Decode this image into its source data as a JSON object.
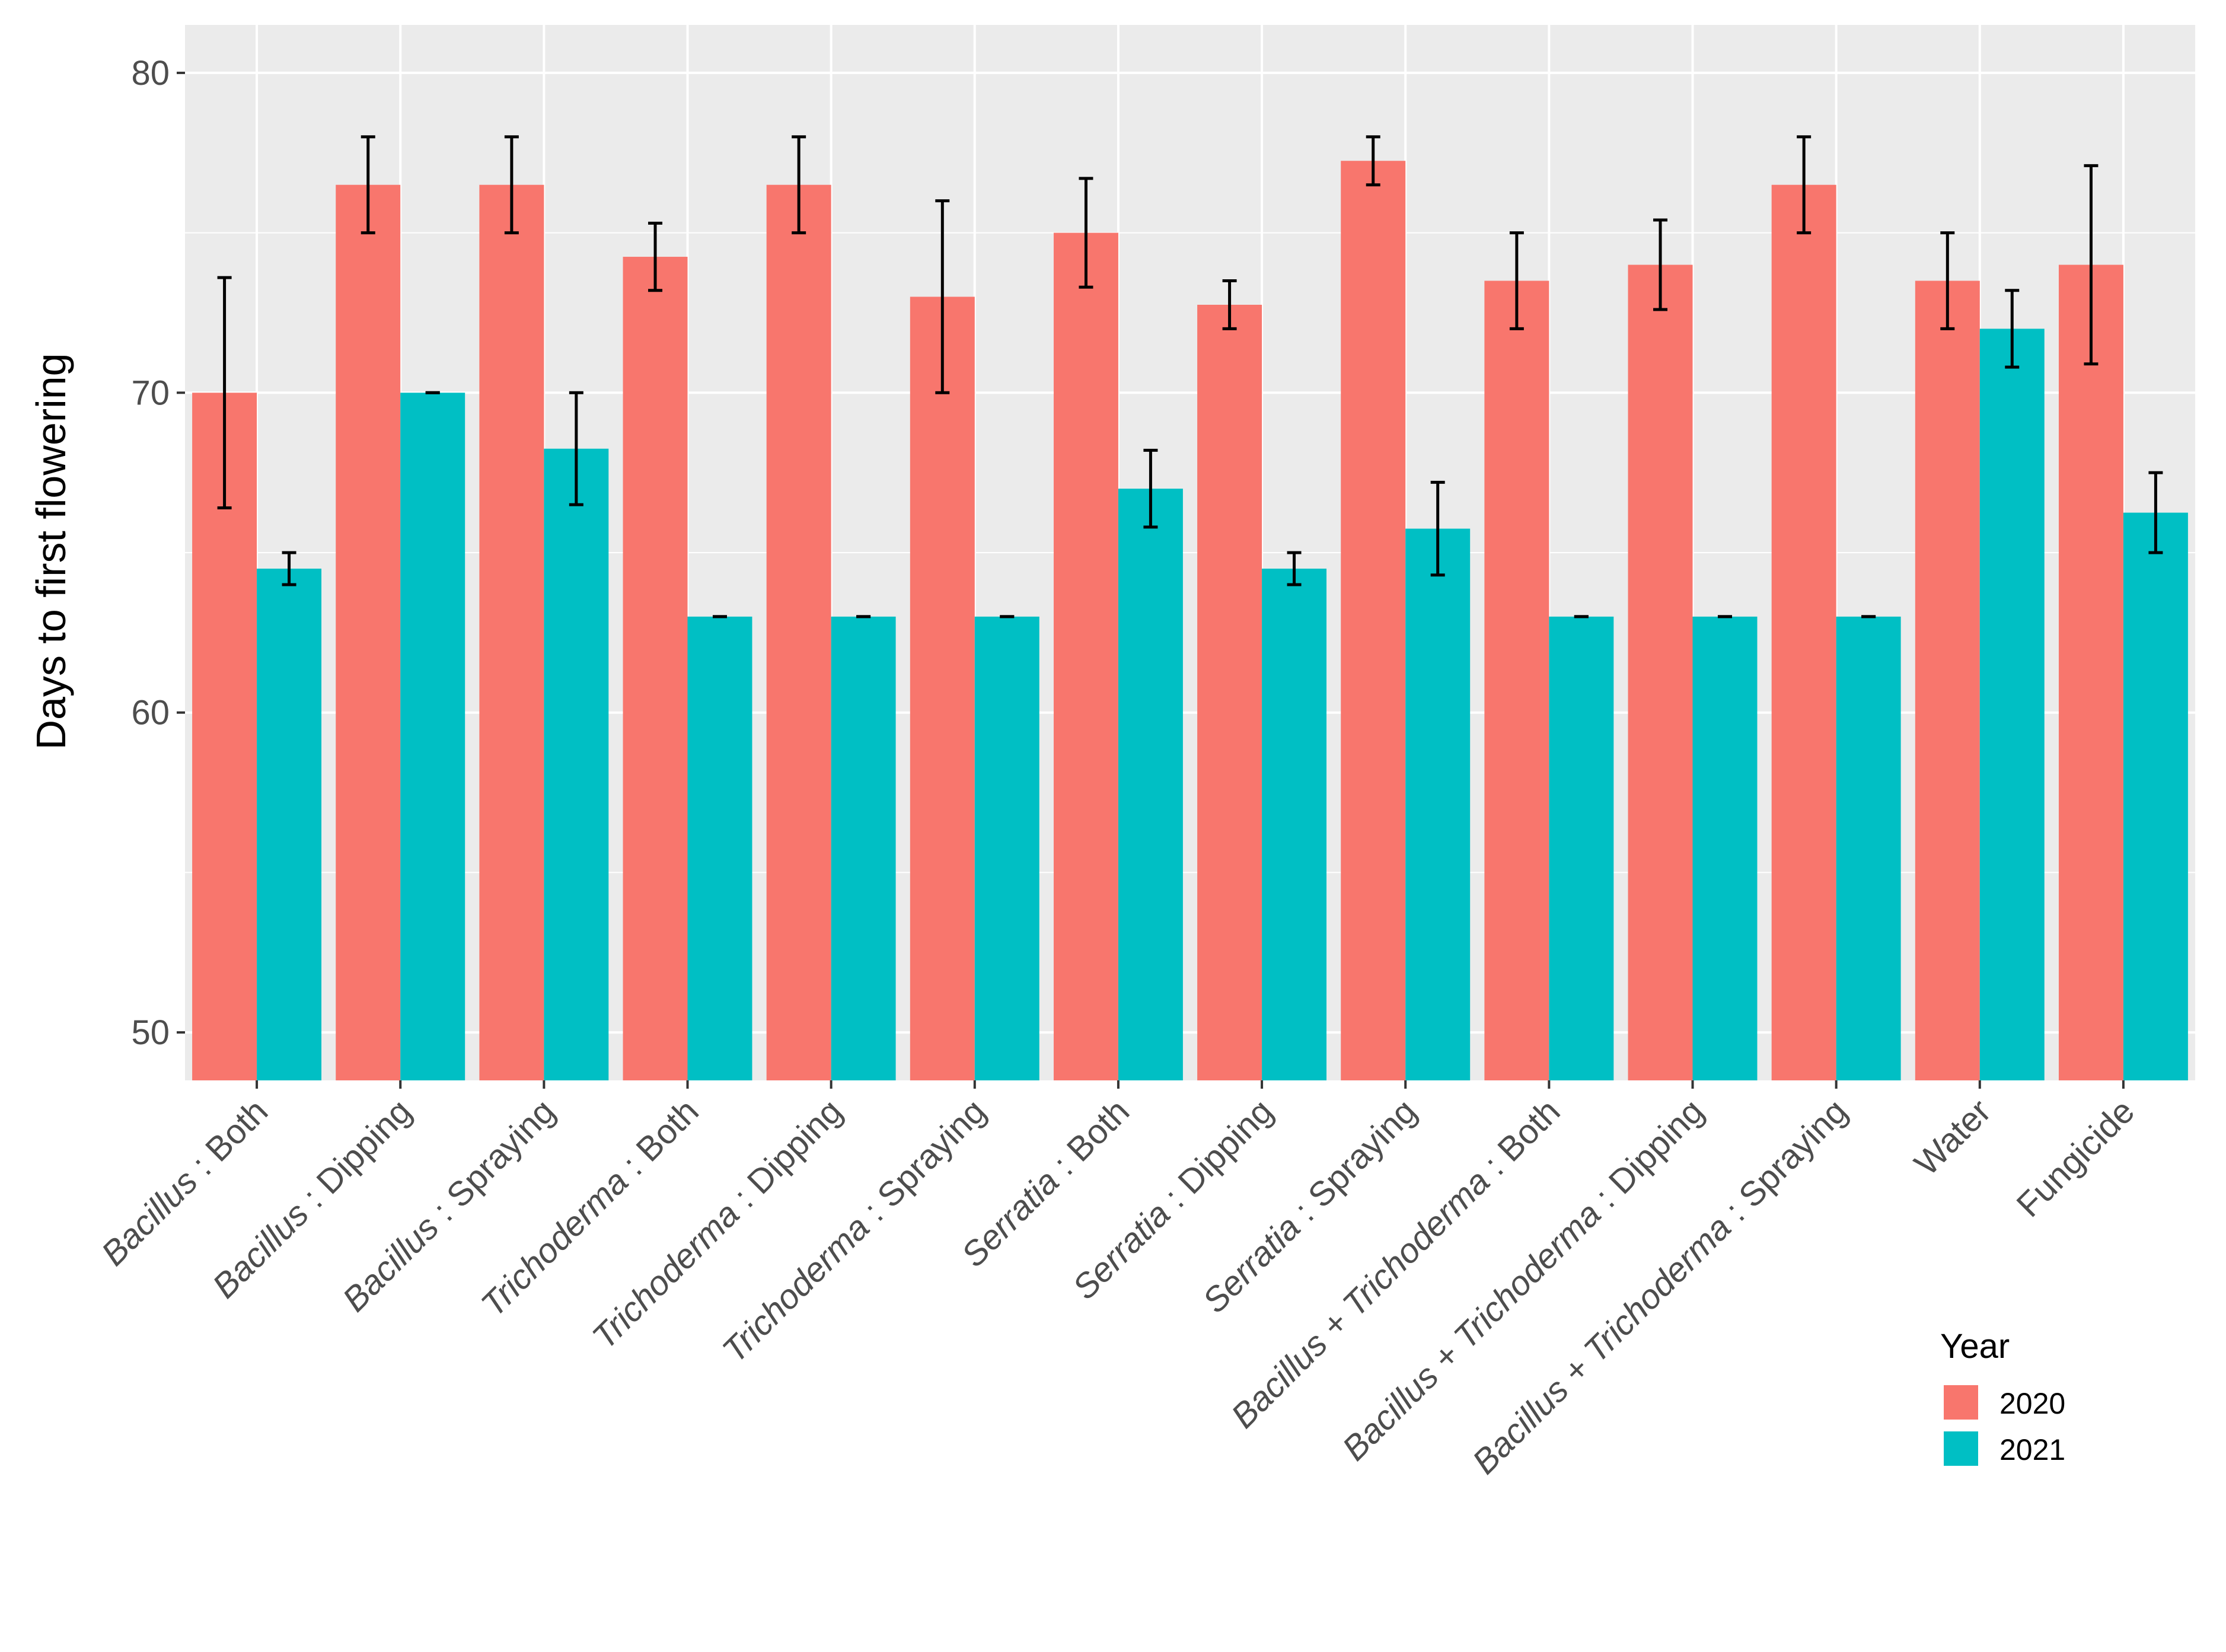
{
  "chart_data": {
    "type": "bar",
    "title": "",
    "xlabel": "",
    "ylabel": "Days to first flowering",
    "ylim": [
      48.5,
      81.5
    ],
    "yticks": [
      50,
      60,
      70,
      80
    ],
    "grid": true,
    "legend": {
      "title": "Year",
      "position": "right-bottom"
    },
    "categories": [
      {
        "name": "Bacillus : Both",
        "italic": "Bacillus",
        "rest": " : Both"
      },
      {
        "name": "Bacillus : Dipping",
        "italic": "Bacillus",
        "rest": " : Dipping"
      },
      {
        "name": "Bacillus : Spraying",
        "italic": "Bacillus",
        "rest": " : Spraying"
      },
      {
        "name": "Trichoderma : Both",
        "italic": "Trichoderma",
        "rest": " : Both"
      },
      {
        "name": "Trichoderma : Dipping",
        "italic": "Trichoderma",
        "rest": " : Dipping"
      },
      {
        "name": "Trichoderma : Spraying",
        "italic": "Trichoderma",
        "rest": " : Spraying"
      },
      {
        "name": "Serratia : Both",
        "italic": "Serratia",
        "rest": " : Both"
      },
      {
        "name": "Serratia : Dipping",
        "italic": "Serratia",
        "rest": " : Dipping"
      },
      {
        "name": "Serratia : Spraying",
        "italic": "Serratia",
        "rest": " : Spraying"
      },
      {
        "name": "Bacillus + Trichoderma : Both",
        "italic": "Bacillus + Trichoderma",
        "rest": " : Both"
      },
      {
        "name": "Bacillus + Trichoderma : Dipping",
        "italic": "Bacillus + Trichoderma",
        "rest": " : Dipping"
      },
      {
        "name": "Bacillus + Trichoderma : Spraying",
        "italic": "Bacillus + Trichoderma",
        "rest": " : Spraying"
      },
      {
        "name": "Water",
        "italic": "",
        "rest": "Water"
      },
      {
        "name": "Fungicide",
        "italic": "",
        "rest": "Fungicide"
      }
    ],
    "series": [
      {
        "name": "2020",
        "color": "#F8766D",
        "values": [
          70.0,
          76.5,
          76.5,
          74.25,
          76.5,
          73.0,
          75.0,
          72.75,
          77.25,
          73.5,
          74.0,
          76.5,
          73.5,
          74.0
        ],
        "err_low": [
          66.4,
          75.0,
          75.0,
          73.2,
          75.0,
          70.0,
          73.3,
          72.0,
          76.5,
          72.0,
          72.6,
          75.0,
          72.0,
          70.9
        ],
        "err_high": [
          73.6,
          78.0,
          78.0,
          75.3,
          78.0,
          76.0,
          76.7,
          73.5,
          78.0,
          75.0,
          75.4,
          78.0,
          75.0,
          77.1
        ]
      },
      {
        "name": "2021",
        "color": "#00BFC4",
        "values": [
          64.5,
          70.0,
          68.25,
          63.0,
          63.0,
          63.0,
          67.0,
          64.5,
          65.75,
          63.0,
          63.0,
          63.0,
          72.0,
          66.25
        ],
        "err_low": [
          64.0,
          70.0,
          66.5,
          63.0,
          63.0,
          63.0,
          65.8,
          64.0,
          64.3,
          63.0,
          63.0,
          63.0,
          70.8,
          65.0
        ],
        "err_high": [
          65.0,
          70.0,
          70.0,
          63.0,
          63.0,
          63.0,
          68.2,
          65.0,
          67.2,
          63.0,
          63.0,
          63.0,
          73.2,
          67.5
        ]
      }
    ]
  }
}
